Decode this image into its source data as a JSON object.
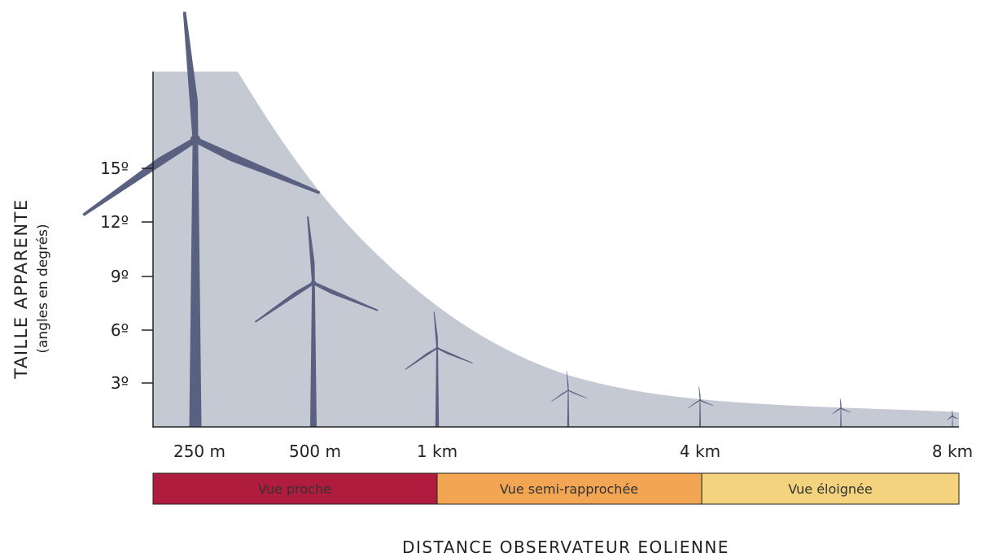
{
  "y_axis": {
    "title": "TAILLE APPARENTE",
    "subtitle": "(angles en degrés)",
    "ticks": [
      "15º",
      "12º",
      "9º",
      "6º",
      "3º"
    ]
  },
  "x_axis": {
    "ticks": [
      "250 m",
      "500 m",
      "1 km",
      "4 km",
      "8 km"
    ],
    "title": "DISTANCE OBSERVATEUR EOLIENNE"
  },
  "zones": [
    "Vue proche",
    "Vue semi-rapprochée",
    "Vue éloignée"
  ]
}
